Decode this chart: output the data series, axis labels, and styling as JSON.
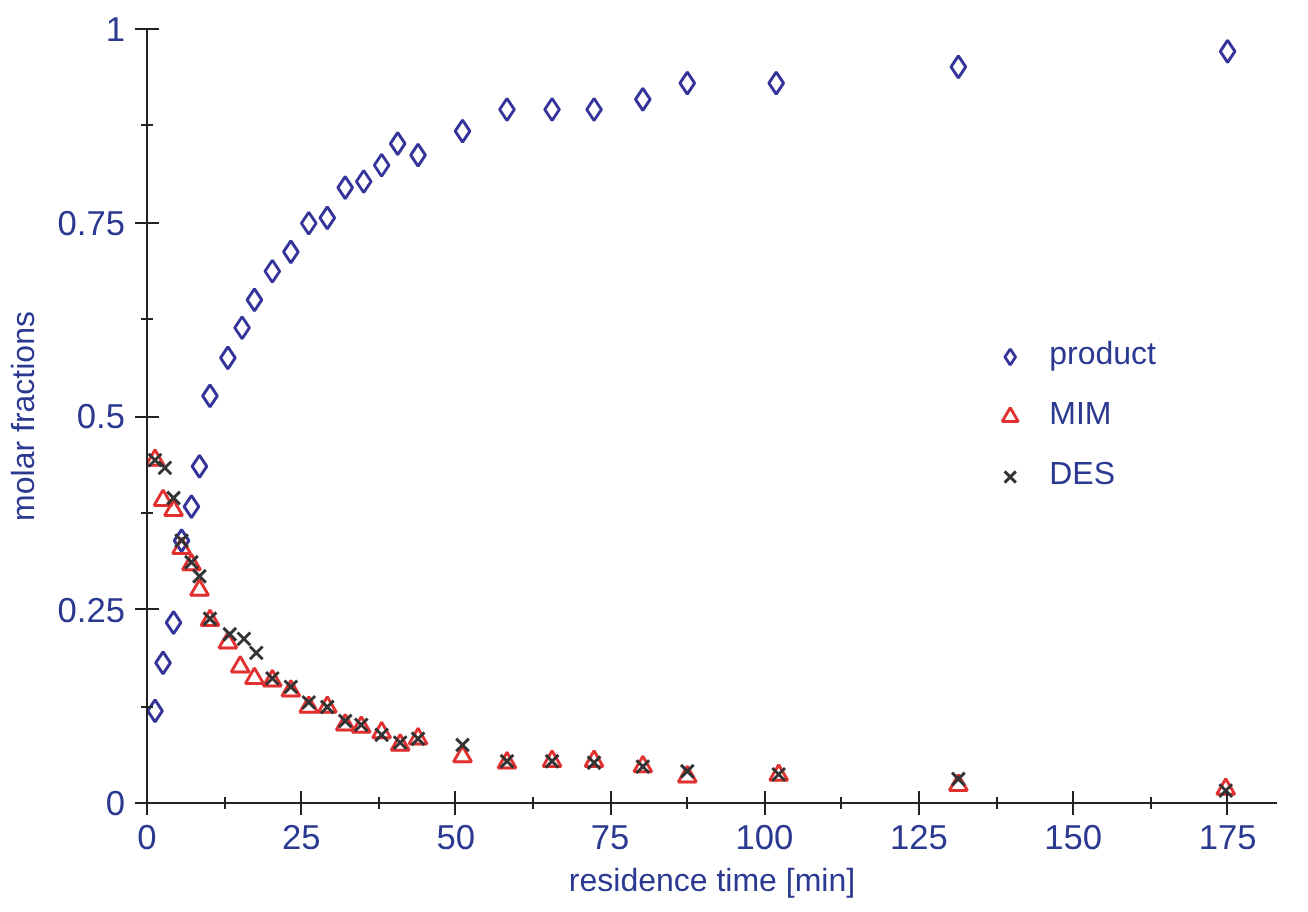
{
  "chart_data": {
    "type": "scatter",
    "xlabel": "residence time [min]",
    "ylabel": "molar fractions",
    "xlim": [
      0,
      183
    ],
    "ylim": [
      0,
      1
    ],
    "xticks": [
      0,
      25,
      50,
      75,
      100,
      125,
      150,
      175
    ],
    "yticks": [
      0,
      0.25,
      0.5,
      0.75,
      1
    ],
    "grid": false,
    "legend": "right",
    "series": [
      {
        "name": "product",
        "color": "#33339a",
        "marker": "diamond",
        "x": [
          1.3,
          2.6,
          4.3,
          5.6,
          7.2,
          8.5,
          10.2,
          13.1,
          15.4,
          17.4,
          20.3,
          23.3,
          26.2,
          29.2,
          32.1,
          35.1,
          38.0,
          40.6,
          43.9,
          51.1,
          58.3,
          65.6,
          72.4,
          80.3,
          87.5,
          101.9,
          131.4,
          175.0
        ],
        "values": [
          0.119,
          0.181,
          0.233,
          0.339,
          0.383,
          0.435,
          0.526,
          0.575,
          0.614,
          0.65,
          0.687,
          0.712,
          0.749,
          0.756,
          0.795,
          0.803,
          0.824,
          0.852,
          0.837,
          0.868,
          0.896,
          0.896,
          0.896,
          0.909,
          0.93,
          0.93,
          0.951,
          0.971
        ]
      },
      {
        "name": "MIM",
        "color": "#e03030",
        "marker": "triangle",
        "x": [
          1.3,
          2.6,
          4.3,
          5.6,
          7.2,
          8.5,
          10.2,
          13.1,
          15.1,
          17.4,
          20.3,
          23.3,
          26.2,
          29.2,
          32.1,
          34.7,
          38.0,
          41.0,
          43.9,
          51.1,
          58.3,
          65.6,
          72.4,
          80.3,
          87.5,
          102.3,
          131.4,
          174.7
        ],
        "values": [
          0.443,
          0.391,
          0.378,
          0.329,
          0.308,
          0.275,
          0.236,
          0.207,
          0.176,
          0.161,
          0.158,
          0.145,
          0.124,
          0.124,
          0.101,
          0.098,
          0.091,
          0.075,
          0.083,
          0.06,
          0.052,
          0.054,
          0.054,
          0.047,
          0.034,
          0.036,
          0.023,
          0.018
        ]
      },
      {
        "name": "DES",
        "color": "#333333",
        "marker": "cross",
        "x": [
          1.3,
          2.9,
          4.3,
          5.6,
          7.2,
          8.5,
          10.2,
          13.4,
          15.7,
          17.7,
          20.3,
          23.3,
          26.2,
          29.2,
          32.1,
          34.7,
          38.0,
          41.0,
          43.9,
          51.1,
          58.3,
          65.6,
          72.4,
          80.3,
          87.5,
          102.3,
          131.4,
          174.7
        ],
        "values": [
          0.443,
          0.433,
          0.394,
          0.339,
          0.311,
          0.293,
          0.238,
          0.218,
          0.212,
          0.194,
          0.161,
          0.15,
          0.13,
          0.124,
          0.106,
          0.101,
          0.088,
          0.078,
          0.083,
          0.075,
          0.054,
          0.054,
          0.052,
          0.047,
          0.041,
          0.037,
          0.031,
          0.016
        ]
      }
    ]
  }
}
